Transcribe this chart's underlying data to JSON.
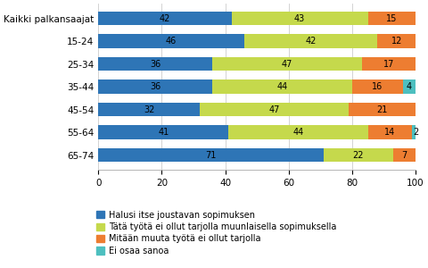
{
  "categories": [
    "Kaikki palkansaajat",
    "15-24",
    "25-34",
    "35-44",
    "45-54",
    "55-64",
    "65-74"
  ],
  "series": {
    "Halusi itse joustavan sopimuksen": [
      42,
      46,
      36,
      36,
      32,
      41,
      71
    ],
    "Tätä työtä ei ollut tarjolla muunlaisella sopimuksella": [
      43,
      42,
      47,
      44,
      47,
      44,
      22
    ],
    "Mitään muuta työtä ei ollut tarjolla": [
      15,
      12,
      17,
      16,
      21,
      14,
      7
    ],
    "Ei osaa sanoa": [
      0,
      0,
      0,
      4,
      0,
      2,
      0
    ]
  },
  "colors": {
    "Halusi itse joustavan sopimuksen": "#2E75B6",
    "Tätä työtä ei ollut tarjolla muunlaisella sopimuksella": "#C5D94C",
    "Mitään muuta työtä ei ollut tarjolla": "#ED7D31",
    "Ei osaa sanoa": "#4DBFBF"
  },
  "xlim": [
    0,
    100
  ],
  "xticks": [
    0,
    20,
    40,
    60,
    80,
    100
  ],
  "bar_height": 0.62,
  "label_fontsize": 7.0,
  "legend_fontsize": 7.0,
  "tick_fontsize": 7.5,
  "figsize": [
    4.8,
    3.0
  ],
  "dpi": 100
}
